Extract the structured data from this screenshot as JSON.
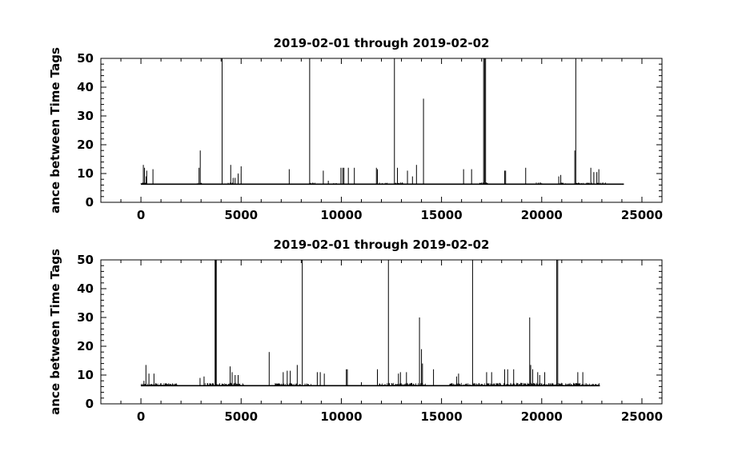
{
  "chart_data": [
    {
      "type": "line",
      "title": "2019-02-01 through 2019-02-02",
      "xlabel": "",
      "ylabel": "ance between Time Tags",
      "xlim": [
        -2000,
        26000
      ],
      "ylim": [
        0,
        50
      ],
      "xticks": [
        0,
        5000,
        10000,
        15000,
        20000,
        25000
      ],
      "xtick_labels": [
        "0",
        "5000",
        "10000",
        "15000",
        "20000",
        "25000"
      ],
      "yticks": [
        0,
        10,
        20,
        30,
        40,
        50
      ],
      "ytick_labels": [
        "0",
        "10",
        "20",
        "30",
        "40",
        "50"
      ],
      "grid": false,
      "x_range_data": [
        0,
        24100
      ],
      "baseline": 6.3,
      "noise_bands": [
        [
          0,
          300,
          6.9
        ],
        [
          2800,
          3100,
          6.8
        ],
        [
          4350,
          4700,
          7.0
        ],
        [
          8400,
          8700,
          6.9
        ],
        [
          9600,
          9900,
          6.8
        ],
        [
          11900,
          12300,
          6.9
        ],
        [
          12700,
          13100,
          7.0
        ],
        [
          16900,
          17300,
          7.0
        ],
        [
          19700,
          20050,
          7.0
        ],
        [
          20900,
          21200,
          6.9
        ],
        [
          21700,
          23200,
          6.9
        ]
      ],
      "spikes": [
        [
          120,
          13
        ],
        [
          180,
          12
        ],
        [
          260,
          9
        ],
        [
          290,
          11
        ],
        [
          600,
          11.5
        ],
        [
          2900,
          12
        ],
        [
          2960,
          18
        ],
        [
          4050,
          50
        ],
        [
          4480,
          13
        ],
        [
          4600,
          8.5
        ],
        [
          4700,
          8.5
        ],
        [
          4850,
          10
        ],
        [
          5000,
          12.5
        ],
        [
          7400,
          11.5
        ],
        [
          8420,
          50
        ],
        [
          9100,
          11
        ],
        [
          9350,
          7.5
        ],
        [
          9980,
          12
        ],
        [
          10070,
          12
        ],
        [
          10130,
          12
        ],
        [
          10350,
          12
        ],
        [
          10650,
          12
        ],
        [
          11750,
          12
        ],
        [
          11800,
          11.5
        ],
        [
          12650,
          50
        ],
        [
          12800,
          12
        ],
        [
          13300,
          11
        ],
        [
          13550,
          9
        ],
        [
          13750,
          13
        ],
        [
          14100,
          36
        ],
        [
          16100,
          11.5
        ],
        [
          16500,
          11.5
        ],
        [
          17100,
          50
        ],
        [
          17150,
          50
        ],
        [
          17200,
          50
        ],
        [
          18150,
          11
        ],
        [
          18200,
          11
        ],
        [
          19200,
          12
        ],
        [
          20850,
          9
        ],
        [
          20950,
          9.5
        ],
        [
          21650,
          18
        ],
        [
          21700,
          50
        ],
        [
          22450,
          12
        ],
        [
          22600,
          10.5
        ],
        [
          22750,
          10.5
        ],
        [
          22850,
          11.5
        ]
      ]
    },
    {
      "type": "line",
      "title": "2019-02-01 through 2019-02-02",
      "xlabel": "",
      "ylabel": "ance between Time Tags",
      "xlim": [
        -2000,
        26000
      ],
      "ylim": [
        0,
        50
      ],
      "xticks": [
        0,
        5000,
        10000,
        15000,
        20000,
        25000
      ],
      "xtick_labels": [
        "0",
        "5000",
        "10000",
        "15000",
        "20000",
        "25000"
      ],
      "yticks": [
        0,
        10,
        20,
        30,
        40,
        50
      ],
      "ytick_labels": [
        "0",
        "10",
        "20",
        "30",
        "40",
        "50"
      ],
      "grid": false,
      "x_range_data": [
        0,
        22900
      ],
      "baseline": 6.3,
      "noise_bands": [
        [
          0,
          1800,
          7.2
        ],
        [
          3200,
          5200,
          7.3
        ],
        [
          6700,
          8500,
          7.2
        ],
        [
          11900,
          14200,
          7.3
        ],
        [
          15400,
          22900,
          7.3
        ]
      ],
      "spikes": [
        [
          150,
          8
        ],
        [
          250,
          13.5
        ],
        [
          400,
          10.5
        ],
        [
          650,
          10.5
        ],
        [
          2950,
          9
        ],
        [
          3150,
          9.5
        ],
        [
          3700,
          50
        ],
        [
          3730,
          50
        ],
        [
          3760,
          50
        ],
        [
          4450,
          13
        ],
        [
          4550,
          11
        ],
        [
          4700,
          10
        ],
        [
          4850,
          10
        ],
        [
          6400,
          18
        ],
        [
          7100,
          11
        ],
        [
          7300,
          11.5
        ],
        [
          7450,
          11.5
        ],
        [
          7800,
          13.5
        ],
        [
          8050,
          50
        ],
        [
          8800,
          11
        ],
        [
          8950,
          11
        ],
        [
          9150,
          10.5
        ],
        [
          10250,
          12
        ],
        [
          10300,
          12
        ],
        [
          11000,
          7.5
        ],
        [
          11800,
          12
        ],
        [
          12350,
          50
        ],
        [
          12850,
          10.5
        ],
        [
          12950,
          11
        ],
        [
          13250,
          11
        ],
        [
          13900,
          30
        ],
        [
          14000,
          19
        ],
        [
          14050,
          14
        ],
        [
          14600,
          12
        ],
        [
          15750,
          9.5
        ],
        [
          15850,
          10.5
        ],
        [
          16550,
          50
        ],
        [
          17250,
          11
        ],
        [
          17500,
          11
        ],
        [
          18150,
          12
        ],
        [
          18300,
          12
        ],
        [
          18600,
          12
        ],
        [
          19400,
          30
        ],
        [
          19450,
          13.5
        ],
        [
          19550,
          12
        ],
        [
          19800,
          11
        ],
        [
          19900,
          10
        ],
        [
          20150,
          11
        ],
        [
          20750,
          50
        ],
        [
          20800,
          50
        ],
        [
          21800,
          11
        ],
        [
          22050,
          11
        ]
      ]
    }
  ]
}
